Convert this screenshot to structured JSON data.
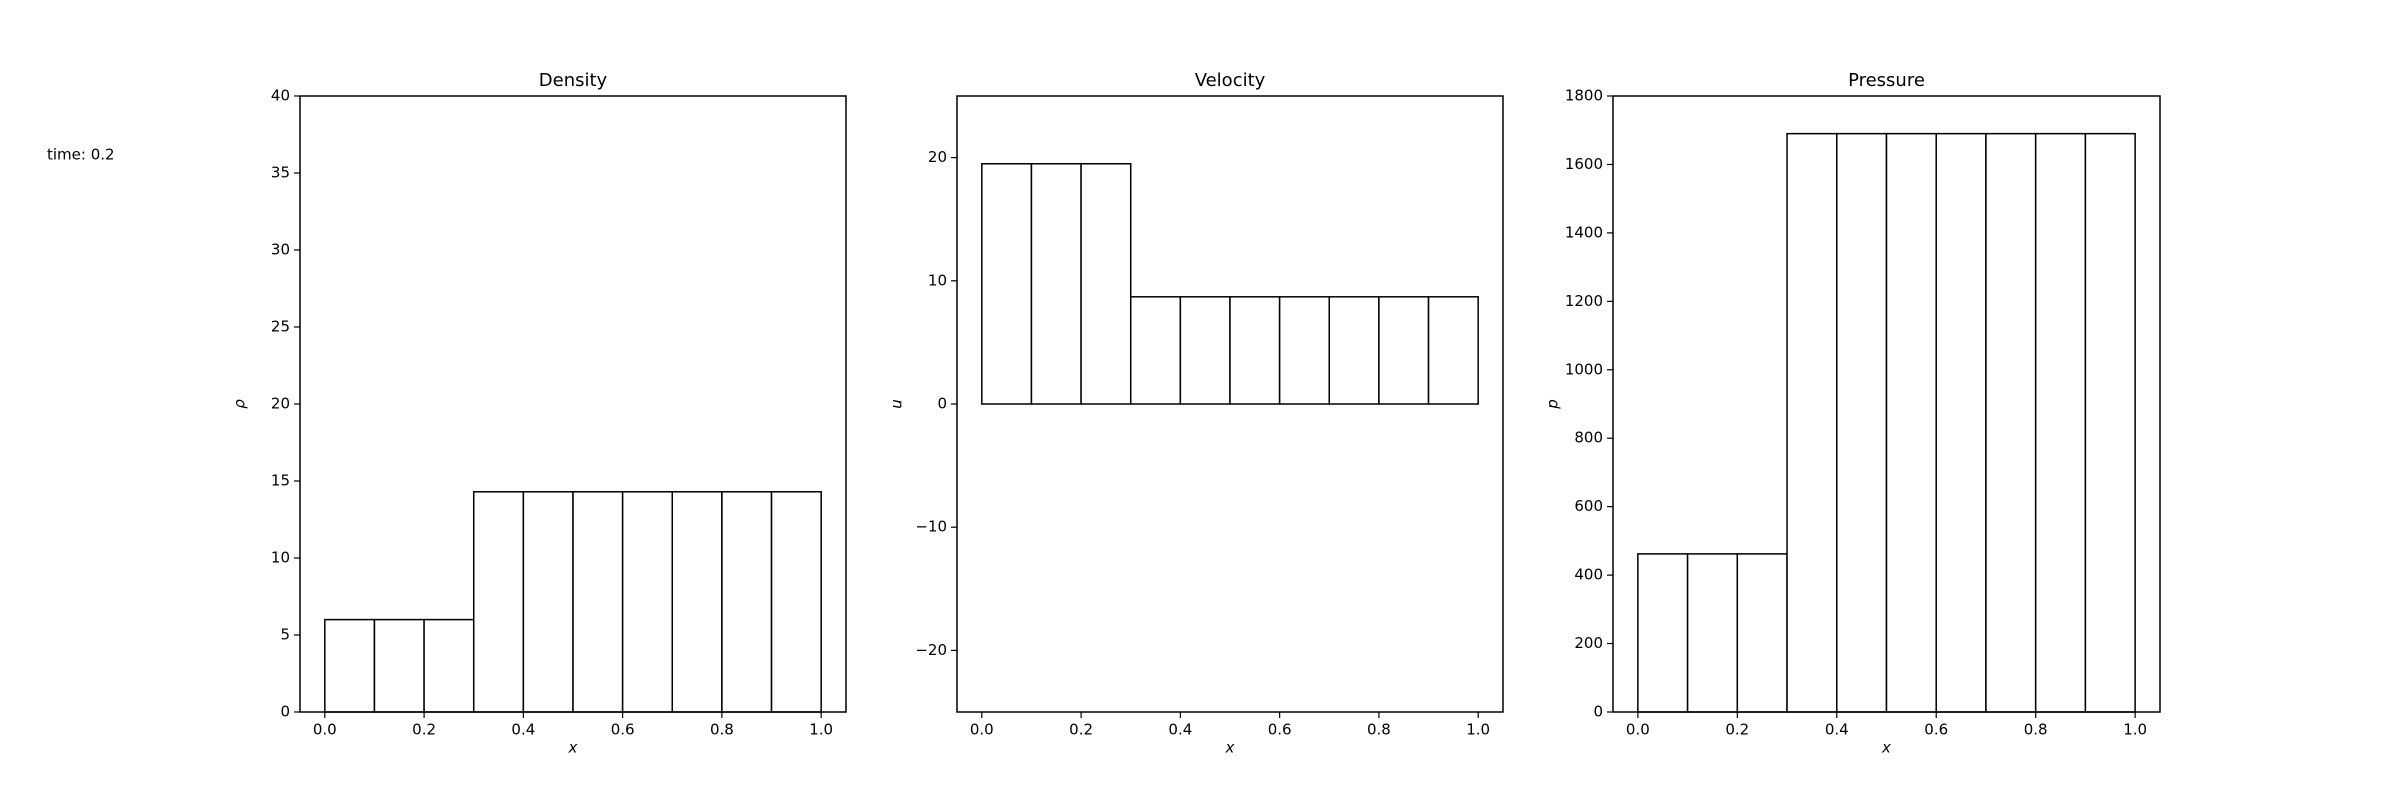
{
  "chart_data": [
    {
      "type": "histogram",
      "title": "Density",
      "annotation": "time: 0.2",
      "xlabel": "x",
      "ylabel": "ρ",
      "bins": [
        0,
        0.1,
        0.2,
        0.3,
        0.4,
        0.5,
        0.6,
        0.7,
        0.8,
        0.9,
        1.0
      ],
      "values": [
        6,
        6,
        6,
        14.3,
        14.3,
        14.3,
        14.3,
        14.3,
        14.3,
        14.3
      ],
      "color": "#ffffff",
      "edgecolor": "#000000",
      "xlim": [
        -0.05,
        1.05
      ],
      "xticks": [
        {
          "value": 0,
          "label": "0.0"
        },
        0.2,
        0.4,
        0.6,
        0.8,
        {
          "value": 1,
          "label": "1.0"
        }
      ],
      "ylim": [
        0,
        40
      ],
      "yticks": [
        0,
        5,
        10,
        15,
        20,
        25,
        30,
        35,
        40
      ]
    },
    {
      "type": "histogram",
      "title": "Velocity",
      "xlabel": "x",
      "ylabel": "u",
      "bins": [
        0,
        0.1,
        0.2,
        0.3,
        0.4,
        0.5,
        0.6,
        0.7,
        0.8,
        0.9,
        1.0
      ],
      "values": [
        19.5,
        19.5,
        19.5,
        8.7,
        8.7,
        8.7,
        8.7,
        8.7,
        8.7,
        8.7
      ],
      "color": "#ffffff",
      "edgecolor": "#000000",
      "xlim": [
        -0.05,
        1.05
      ],
      "xticks": [
        {
          "value": 0,
          "label": "0.0"
        },
        0.2,
        0.4,
        0.6,
        0.8,
        {
          "value": 1,
          "label": "1.0"
        }
      ],
      "ylim": [
        -25,
        25
      ],
      "yticks": [
        {
          "value": -20,
          "label": "−20"
        },
        {
          "value": -10,
          "label": "−10"
        },
        0,
        10,
        20
      ]
    },
    {
      "type": "histogram",
      "title": "Pressure",
      "xlabel": "x",
      "ylabel": "p",
      "bins": [
        0,
        0.1,
        0.2,
        0.3,
        0.4,
        0.5,
        0.6,
        0.7,
        0.8,
        0.9,
        1.0
      ],
      "values": [
        462,
        462,
        462,
        1690,
        1690,
        1690,
        1690,
        1690,
        1690,
        1690
      ],
      "color": "#ffffff",
      "edgecolor": "#000000",
      "xlim": [
        -0.05,
        1.05
      ],
      "xticks": [
        {
          "value": 0,
          "label": "0.0"
        },
        0.2,
        0.4,
        0.6,
        0.8,
        {
          "value": 1,
          "label": "1.0"
        }
      ],
      "ylim": [
        0,
        1800
      ],
      "yticks": [
        0,
        200,
        400,
        600,
        800,
        1000,
        1200,
        1400,
        1600,
        1800
      ]
    }
  ]
}
